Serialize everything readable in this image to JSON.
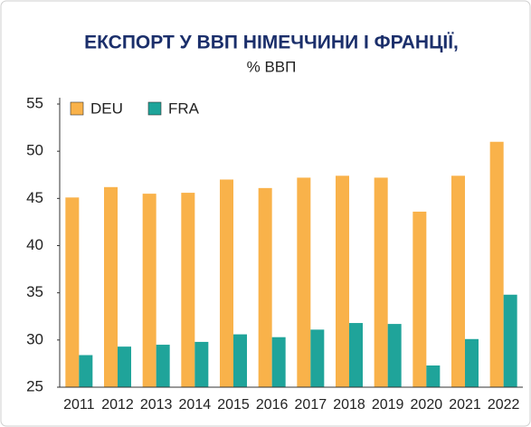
{
  "chart_data": {
    "type": "bar",
    "title": "ЕКСПОРТ У ВВП НІМЕЧЧИНИ І ФРАНЦІЇ,",
    "subtitle": "% ВВП",
    "categories": [
      "2011",
      "2012",
      "2013",
      "2014",
      "2015",
      "2016",
      "2017",
      "2018",
      "2019",
      "2020",
      "2021",
      "2022"
    ],
    "series": [
      {
        "name": "DEU",
        "color": "#f9b24a",
        "values": [
          45.1,
          46.2,
          45.5,
          45.6,
          47.0,
          46.1,
          47.2,
          47.4,
          47.2,
          43.6,
          47.4,
          51.0
        ]
      },
      {
        "name": "FRA",
        "color": "#1fa49a",
        "values": [
          28.4,
          29.3,
          29.5,
          29.8,
          30.6,
          30.3,
          31.1,
          31.8,
          31.7,
          27.3,
          30.1,
          34.8
        ]
      }
    ],
    "ylim": [
      25,
      55
    ],
    "yticks": [
      25,
      30,
      35,
      40,
      45,
      50,
      55
    ],
    "legend": "top-left"
  }
}
